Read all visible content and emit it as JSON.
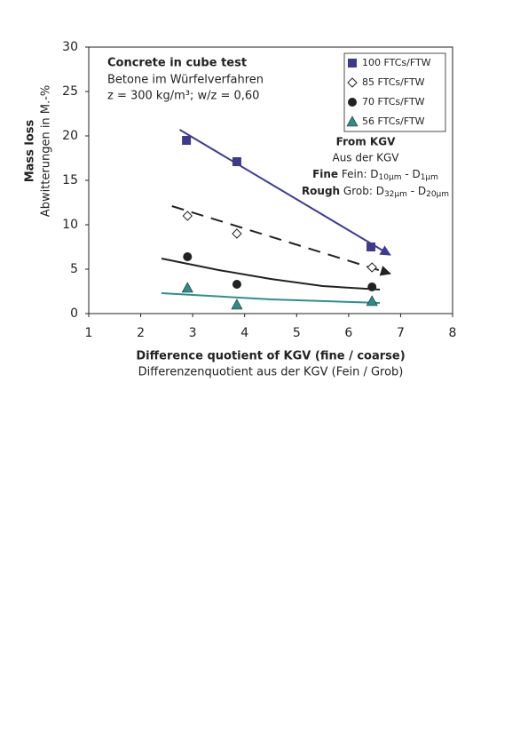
{
  "chart_data": {
    "type": "scatter",
    "y_label_en": "Mass loss",
    "y_label_de": "Abwitterungen in M.-%",
    "x_label_en": "Difference quotient of KGV (fine / coarse)",
    "x_label_de": "Differenzenquotient aus der KGV (Fein / Grob)",
    "annotation": [
      "Concrete in cube test",
      "Betone im Würfelverfahren",
      "z = 300 kg/m³; w/z = 0,60"
    ],
    "kgv_note": {
      "title": "From KGV",
      "subtitle": "Aus der KGV",
      "fine": [
        "Fine",
        " Fein: D",
        "10µm",
        " - D",
        "1µm"
      ],
      "rough": [
        "Rough",
        " Grob: D",
        "32µm",
        " - D",
        "20µm"
      ]
    },
    "xlim": [
      1,
      8
    ],
    "xticks": [
      1,
      2,
      3,
      4,
      5,
      6,
      7,
      8
    ],
    "ylim": [
      0,
      30
    ],
    "yticks": [
      0,
      5,
      10,
      15,
      20,
      25,
      30
    ],
    "series": [
      {
        "name": "100 FTCs/FTW",
        "marker": "square",
        "color": "#3d3a8c",
        "x": [
          2.88,
          3.85,
          6.43
        ],
        "values": [
          19.5,
          17.1,
          7.5
        ],
        "trend_x": [
          2.75,
          6.8
        ],
        "trend_y": [
          20.7,
          6.6
        ],
        "trend_color": "#3d3a96",
        "dash": false,
        "arrow": true
      },
      {
        "name": "85 FTCs/FTW",
        "marker": "diamond",
        "color": "#222222",
        "x": [
          2.9,
          3.85,
          6.45
        ],
        "values": [
          11,
          9,
          5.2
        ],
        "trend_x": [
          2.6,
          6.8
        ],
        "trend_y": [
          12.1,
          4.5
        ],
        "trend_color": "#222222",
        "dash": true,
        "arrow": true
      },
      {
        "name": "70 FTCs/FTW",
        "marker": "circle",
        "color": "#222222",
        "x": [
          2.9,
          3.85,
          6.45
        ],
        "values": [
          6.4,
          3.3,
          3.0
        ],
        "trend_x": [
          2.4,
          3.5,
          4.5,
          5.5,
          6.6
        ],
        "trend_y": [
          6.2,
          4.9,
          3.9,
          3.1,
          2.7
        ],
        "trend_color": "#222222",
        "dash": false,
        "arrow": false
      },
      {
        "name": "56 FTCs/FTW",
        "marker": "triangle",
        "color": "#2b8c8c",
        "x": [
          2.9,
          3.85,
          6.45
        ],
        "values": [
          2.9,
          1.0,
          1.4
        ],
        "trend_x": [
          2.4,
          4.5,
          6.6
        ],
        "trend_y": [
          2.3,
          1.6,
          1.2
        ],
        "trend_color": "#2b9090",
        "dash": false,
        "arrow": false
      }
    ]
  }
}
